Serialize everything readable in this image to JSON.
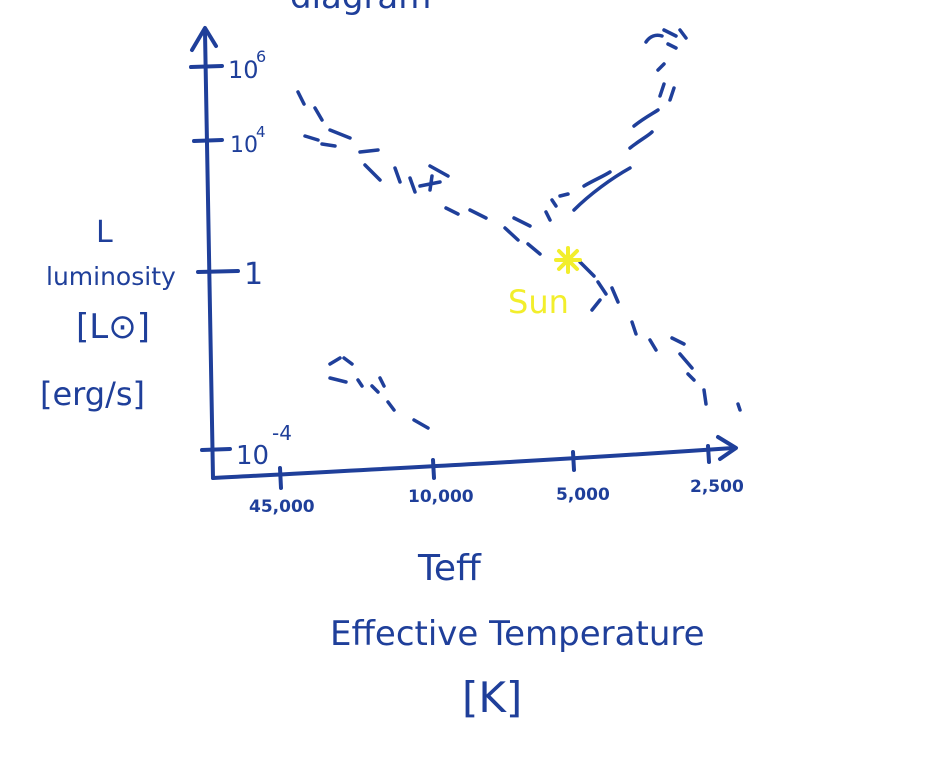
{
  "diagram": {
    "title_fragment": "diagram",
    "y_axis": {
      "symbol": "L",
      "name": "luminosity",
      "unit_solar": "[L⊙]",
      "unit_cgs": "[erg/s]",
      "ticks": [
        {
          "base": "10",
          "exp": "6"
        },
        {
          "base": "10",
          "exp": "4"
        },
        {
          "base": "1",
          "exp": ""
        },
        {
          "base": "10",
          "exp": "-4"
        }
      ]
    },
    "x_axis": {
      "symbol": "Teff",
      "name": "Effective Temperature",
      "unit": "[K]",
      "ticks": [
        "45,000",
        "10,000",
        "5,000",
        "2,500"
      ]
    },
    "sun_label": "Sun",
    "colors": {
      "ink": "#1f3f9a",
      "sun": "#f2ee2c",
      "background": "#ffffff"
    }
  }
}
